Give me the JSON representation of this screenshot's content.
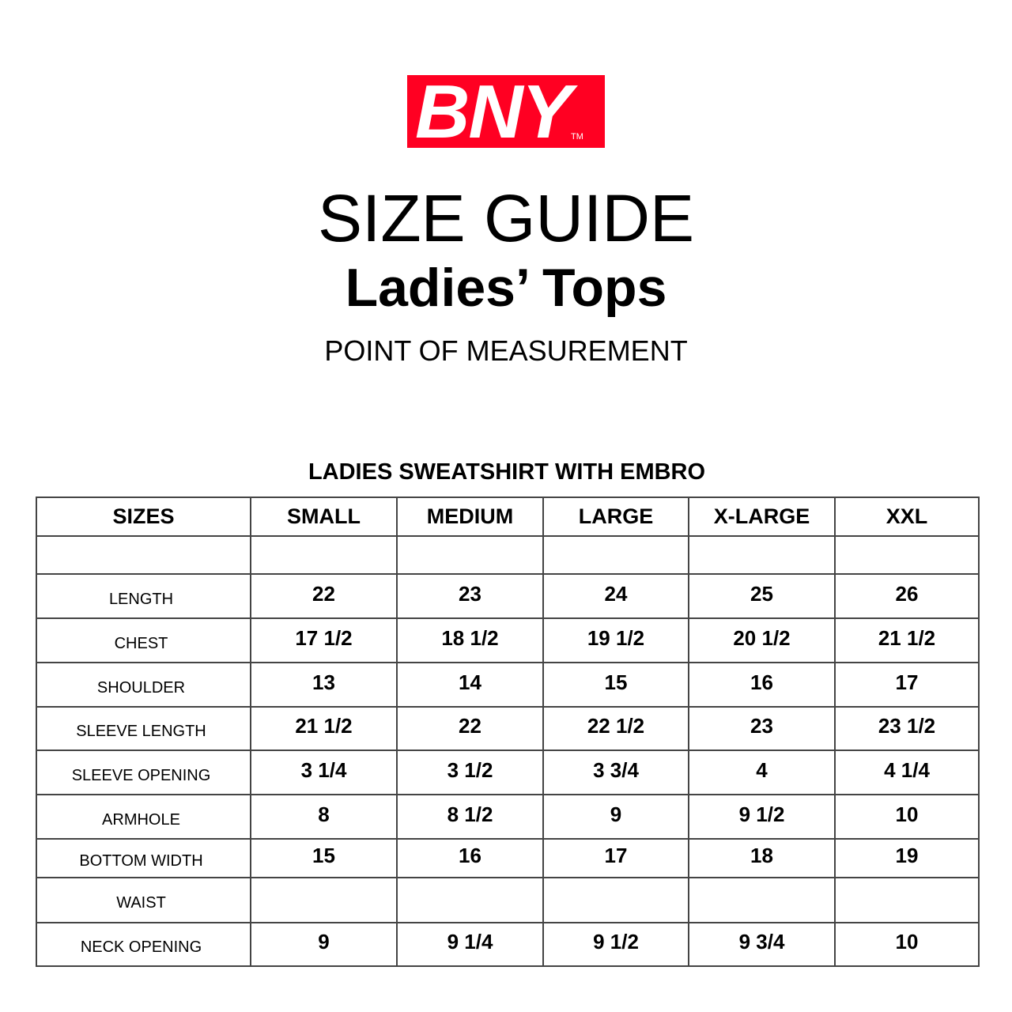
{
  "logo": {
    "text": "BNY",
    "tm": "TM",
    "background": "#ff0022"
  },
  "title": "SIZE GUIDE",
  "subtitle": "Ladies’ Tops",
  "point_of_measurement": "POINT OF MEASUREMENT",
  "table_title": "LADIES SWEATSHIRT WITH EMBRO",
  "table": {
    "headers": [
      "SIZES",
      "SMALL",
      "MEDIUM",
      "LARGE",
      "X-LARGE",
      "XXL"
    ],
    "rows": [
      {
        "label": "",
        "values": [
          "",
          "",
          "",
          "",
          ""
        ]
      },
      {
        "label": "LENGTH",
        "values": [
          "22",
          "23",
          "24",
          "25",
          "26"
        ]
      },
      {
        "label": "CHEST",
        "values": [
          "17 1/2",
          "18 1/2",
          "19 1/2",
          "20 1/2",
          "21 1/2"
        ]
      },
      {
        "label": "SHOULDER",
        "values": [
          "13",
          "14",
          "15",
          "16",
          "17"
        ]
      },
      {
        "label": "SLEEVE LENGTH",
        "values": [
          "21 1/2",
          "22",
          "22 1/2",
          "23",
          "23 1/2"
        ]
      },
      {
        "label": "SLEEVE OPENING",
        "values": [
          "3 1/4",
          "3 1/2",
          "3 3/4",
          "4",
          "4 1/4"
        ]
      },
      {
        "label": "ARMHOLE",
        "values": [
          "8",
          "8 1/2",
          "9",
          "9 1/2",
          "10"
        ]
      },
      {
        "label": "BOTTOM WIDTH",
        "values": [
          "15",
          "16",
          "17",
          "18",
          "19"
        ]
      },
      {
        "label": "WAIST",
        "values": [
          "",
          "",
          "",
          "",
          ""
        ]
      },
      {
        "label": "NECK OPENING",
        "values": [
          "9",
          "9 1/4",
          "9 1/2",
          "9 3/4",
          "10"
        ]
      }
    ]
  }
}
